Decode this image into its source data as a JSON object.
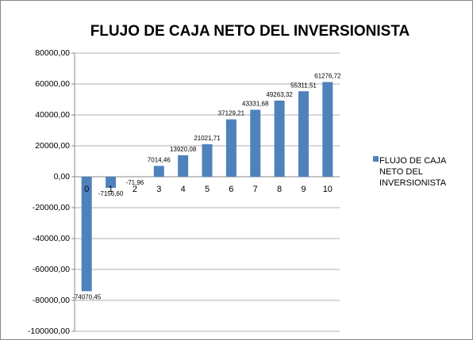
{
  "chart_data": {
    "type": "bar",
    "title": "FLUJO DE CAJA NETO DEL INVERSIONISTA",
    "categories": [
      "0",
      "1",
      "2",
      "3",
      "4",
      "5",
      "6",
      "7",
      "8",
      "9",
      "10"
    ],
    "series": [
      {
        "name": "FLUJO DE CAJA NETO DEL INVERSIONISTA",
        "color": "#4f81bd",
        "values": [
          -74070.45,
          -7156.6,
          -71.96,
          7014.46,
          13920.08,
          21021.71,
          37129.21,
          43331.68,
          49263.32,
          55311.51,
          61276.72
        ],
        "value_labels": [
          "-74070,45",
          "-7156,60",
          "-71,96",
          "7014,46",
          "13920,08",
          "21021,71",
          "37129,21",
          "43331,68",
          "49263,32",
          "55311,51",
          "61276,72"
        ]
      }
    ],
    "ylim": [
      -100000,
      80000
    ],
    "yticks": [
      {
        "value": -100000,
        "label": "-100000,00"
      },
      {
        "value": -80000,
        "label": "-80000,00"
      },
      {
        "value": -60000,
        "label": "-60000,00"
      },
      {
        "value": -40000,
        "label": "-40000,00"
      },
      {
        "value": -20000,
        "label": "-20000,00"
      },
      {
        "value": 0,
        "label": "0,00"
      },
      {
        "value": 20000,
        "label": "20000,00"
      },
      {
        "value": 40000,
        "label": "40000,00"
      },
      {
        "value": 60000,
        "label": "60000,00"
      },
      {
        "value": 80000,
        "label": "80000,00"
      }
    ],
    "grid": true,
    "legend": "right"
  }
}
